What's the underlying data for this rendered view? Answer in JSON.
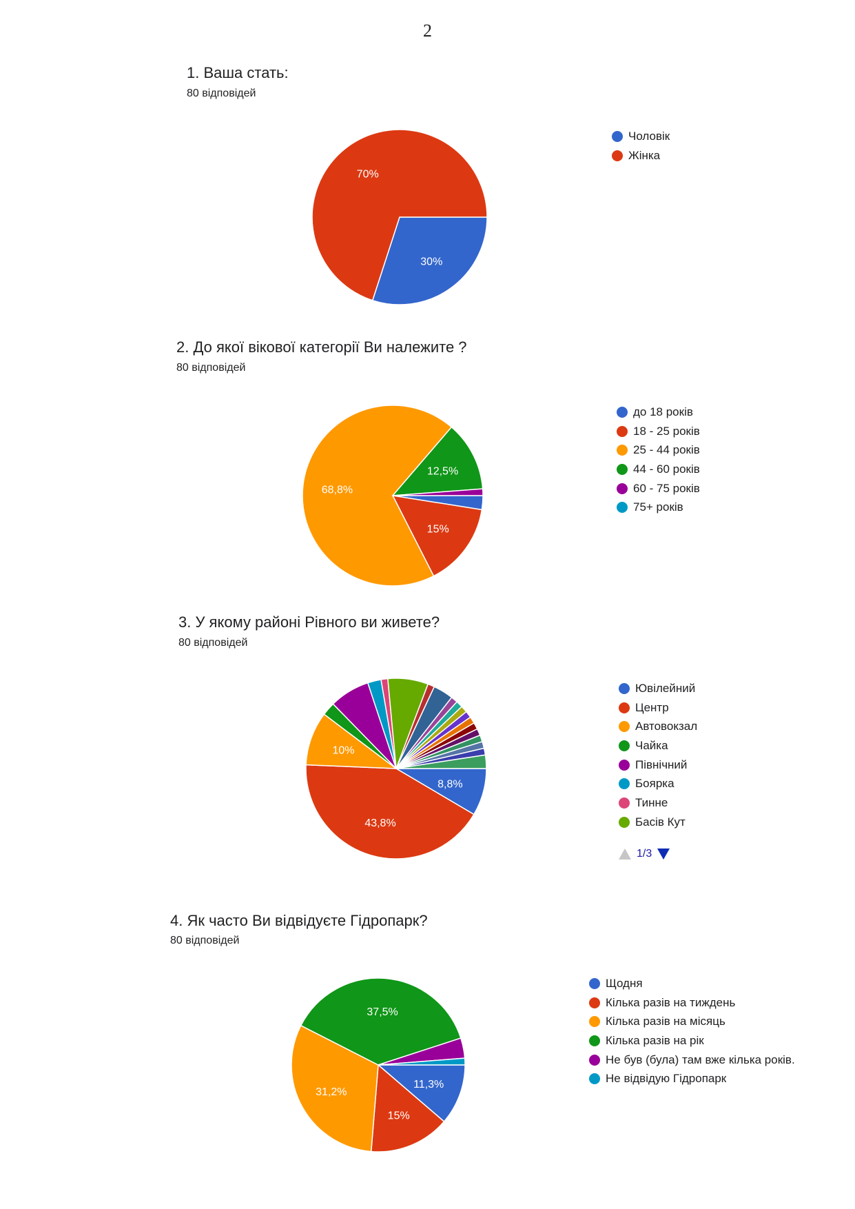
{
  "page_number": "2",
  "questions": [
    {
      "title": "1.  Ваша стать:",
      "responses": "80 відповідей",
      "legend": [
        "Чоловік",
        "Жінка"
      ]
    },
    {
      "title": "2. До якої вікової категорії Ви належите ?",
      "responses": "80 відповідей",
      "legend": [
        "до 18 років",
        "18 - 25 років",
        "25 - 44 років",
        "44 - 60 років",
        "60 - 75 років",
        "75+ років"
      ]
    },
    {
      "title": "3.  У якому районі Рівного ви живете?",
      "responses": "80 відповідей",
      "legend": [
        "Ювілейний",
        "Центр",
        "Автовокзал",
        "Чайка",
        "Північний",
        "Боярка",
        "Тинне",
        "Басів Кут"
      ],
      "pager": "1/3"
    },
    {
      "title": "4.  Як часто Ви відвідуєте Гідропарк?",
      "responses": "80 відповідей",
      "legend": [
        "Щодня",
        "Кілька разів на тиждень",
        "Кілька разів на місяць",
        "Кілька разів на рік",
        "Не був (була) там вже кілька років.",
        "Не відвідую Гідропарк"
      ]
    }
  ],
  "chart_data": [
    {
      "type": "pie",
      "title": "1.  Ваша стать:",
      "categories": [
        "Чоловік",
        "Жінка"
      ],
      "values": [
        30,
        70
      ],
      "labels": [
        "30%",
        "70%"
      ],
      "colors": [
        "#3366cc",
        "#dc3912"
      ],
      "legend": "right"
    },
    {
      "type": "pie",
      "title": "2. До якої вікової категорії Ви належите ?",
      "categories": [
        "до 18 років",
        "18 - 25 років",
        "25 - 44 років",
        "44 - 60 років",
        "60 - 75 років",
        "75+ років"
      ],
      "values": [
        2.5,
        15,
        68.8,
        12.5,
        1.2,
        0
      ],
      "labels": [
        "",
        "15%",
        "68,8%",
        "12,5%",
        "",
        ""
      ],
      "colors": [
        "#3366cc",
        "#dc3912",
        "#ff9900",
        "#109618",
        "#990099",
        "#0099c6"
      ],
      "legend": "right"
    },
    {
      "type": "pie",
      "title": "3.  У якому районі Рівного ви живете?",
      "categories": [
        "Ювілейний",
        "Центр",
        "Автовокзал",
        "Чайка",
        "Північний",
        "Боярка",
        "Тинне",
        "Басів Кут",
        "",
        "",
        "",
        "",
        "",
        "",
        "",
        "",
        "",
        "",
        "",
        "",
        ""
      ],
      "values": [
        8.8,
        43.8,
        10,
        2.5,
        7.5,
        2.5,
        1.25,
        7.5,
        1.25,
        3.75,
        1.25,
        1.25,
        1.25,
        1.25,
        1.25,
        1.25,
        1.25,
        1.25,
        1.25,
        1.25,
        2.5
      ],
      "labels": [
        "8,8%",
        "43,8%",
        "10%",
        "",
        "",
        "",
        "",
        "",
        "",
        "",
        "",
        "",
        "",
        "",
        "",
        "",
        "",
        "",
        "",
        "",
        ""
      ],
      "colors": [
        "#3366cc",
        "#dc3912",
        "#ff9900",
        "#109618",
        "#990099",
        "#0099c6",
        "#dd4477",
        "#66aa00",
        "#b82e2e",
        "#316395",
        "#994499",
        "#22aa99",
        "#aaaa11",
        "#6633cc",
        "#e67300",
        "#8b0707",
        "#651067",
        "#329262",
        "#5574a6",
        "#3b3eac",
        "#3b9e5e"
      ],
      "legend": "right"
    },
    {
      "type": "pie",
      "title": "4.  Як часто Ви відвідуєте Гідропарк?",
      "categories": [
        "Щодня",
        "Кілька разів на тиждень",
        "Кілька разів на місяць",
        "Кілька разів на рік",
        "Не був (була) там вже кілька років.",
        "Не відвідую Гідропарк"
      ],
      "values": [
        11.3,
        15,
        31.2,
        37.5,
        3.75,
        1.25
      ],
      "labels": [
        "11,3%",
        "15%",
        "31,2%",
        "37,5%",
        "",
        ""
      ],
      "colors": [
        "#3366cc",
        "#dc3912",
        "#ff9900",
        "#109618",
        "#990099",
        "#0099c6"
      ],
      "legend": "right"
    }
  ]
}
